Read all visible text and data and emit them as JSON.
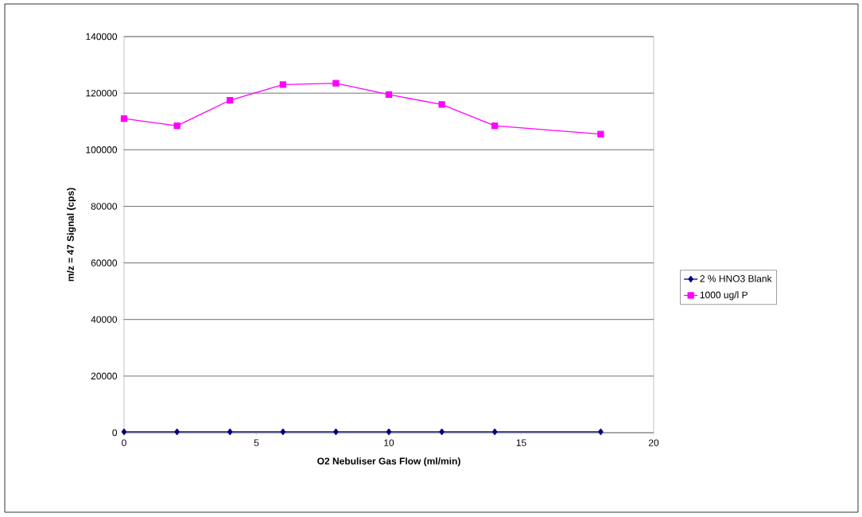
{
  "chart_data": {
    "type": "line",
    "xlabel": "O2 Nebuliser Gas Flow (ml/min)",
    "ylabel": "m/z = 47 Signal (cps)",
    "xlim": [
      0,
      20
    ],
    "xticks": [
      0,
      5,
      10,
      15,
      20
    ],
    "ylim": [
      0,
      140000
    ],
    "yticks": [
      0,
      20000,
      40000,
      60000,
      80000,
      100000,
      120000,
      140000
    ],
    "grid": "y",
    "legend": "right",
    "line_style": "solid",
    "x": [
      0,
      2,
      4,
      6,
      8,
      10,
      12,
      14,
      18
    ],
    "series": [
      {
        "name": "2 % HNO3 Blank",
        "color": "#000080",
        "marker": "diamond",
        "values": [
          300,
          300,
          300,
          300,
          300,
          300,
          300,
          300,
          300
        ]
      },
      {
        "name": "1000 ug/l P",
        "color": "#ff00ff",
        "marker": "square",
        "values": [
          111000,
          108500,
          117500,
          123000,
          123500,
          119500,
          116000,
          108500,
          105500
        ]
      }
    ]
  }
}
